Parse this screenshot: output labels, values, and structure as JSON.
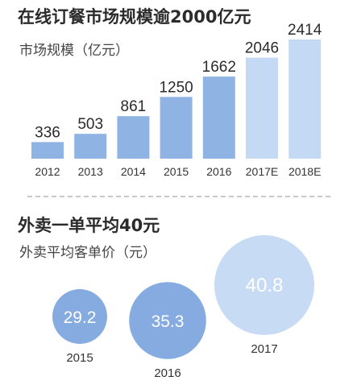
{
  "section1": {
    "title": "在线订餐市场规模逾2000亿元",
    "subtitle": "市场规模（亿元）"
  },
  "section2": {
    "title": "外卖一单平均40元",
    "subtitle": "外卖平均客单价（元）"
  },
  "colors": {
    "bar": "#8fb3e3",
    "bar_estimate": "#c4daf4",
    "bubble": "#86abe0",
    "bubble_large": "#c7dcf4"
  },
  "chart_data": [
    {
      "type": "bar",
      "title": "在线订餐市场规模逾2000亿元",
      "ylabel": "市场规模（亿元）",
      "categories": [
        "2012",
        "2013",
        "2014",
        "2015",
        "2016",
        "2017E",
        "2018E"
      ],
      "values": [
        336,
        503,
        861,
        1250,
        1662,
        2046,
        2414
      ],
      "estimated": [
        false,
        false,
        false,
        false,
        false,
        true,
        true
      ],
      "ylim": [
        0,
        2414
      ],
      "grid": false
    },
    {
      "type": "scatter",
      "title": "外卖一单平均40元",
      "ylabel": "外卖平均客单价（元）",
      "categories": [
        "2015",
        "2016",
        "2017"
      ],
      "values": [
        29.2,
        35.3,
        40.8
      ],
      "grid": false
    }
  ]
}
